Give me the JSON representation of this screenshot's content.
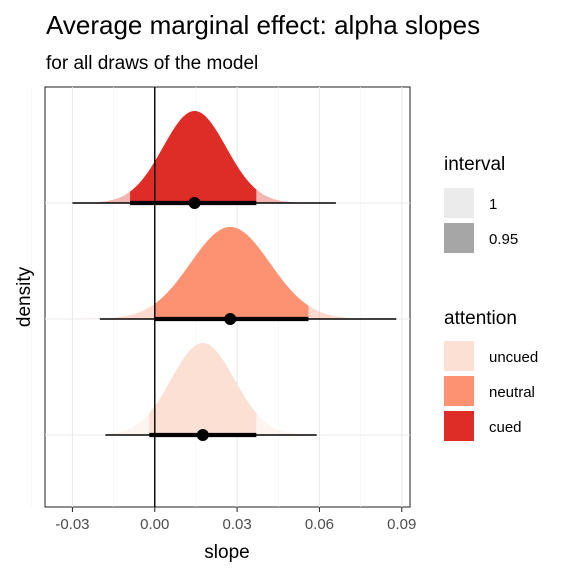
{
  "title": "Average marginal effect: alpha slopes",
  "subtitle": "for all draws of the model",
  "chart_data": {
    "type": "density",
    "xlabel": "slope",
    "ylabel": "density",
    "xlim": [
      -0.04,
      0.093
    ],
    "x_ticks": [
      -0.03,
      0.0,
      0.03,
      0.06,
      0.09
    ],
    "x_tick_labels": [
      "-0.03",
      "0.00",
      "0.03",
      "0.06",
      "0.09"
    ],
    "grid": true,
    "reference_line_x": 0,
    "series": [
      {
        "name": "uncued",
        "color": "#fde0d4",
        "mean": 0.0175,
        "sd": 0.0115,
        "point": 0.0175,
        "interval_95": [
          -0.002,
          0.037
        ],
        "interval_1": [
          -0.018,
          0.059
        ]
      },
      {
        "name": "neutral",
        "color": "#fc9272",
        "mean": 0.0275,
        "sd": 0.0145,
        "point": 0.0275,
        "interval_95": [
          0.0,
          0.056
        ],
        "interval_1": [
          -0.02,
          0.088
        ]
      },
      {
        "name": "cued",
        "color": "#de2d26",
        "mean": 0.0145,
        "sd": 0.0115,
        "point": 0.0145,
        "interval_95": [
          -0.009,
          0.037
        ],
        "interval_1": [
          -0.03,
          0.066
        ]
      }
    ]
  },
  "legend": {
    "interval_title": "interval",
    "interval_items": [
      {
        "label": "1",
        "color": "#ebebeb"
      },
      {
        "label": "0.95",
        "color": "#a6a6a6"
      }
    ],
    "attention_title": "attention",
    "attention_items": [
      {
        "label": "uncued",
        "color": "#fde0d4"
      },
      {
        "label": "neutral",
        "color": "#fc9272"
      },
      {
        "label": "cued",
        "color": "#de2d26"
      }
    ]
  }
}
